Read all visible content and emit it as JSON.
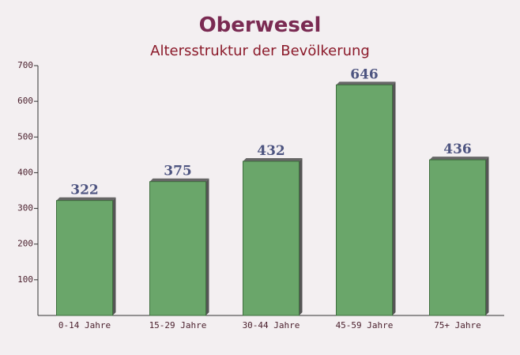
{
  "chart_data": {
    "type": "bar",
    "title": "Oberwesel",
    "subtitle": "Altersstruktur der Bevölkerung",
    "categories": [
      "0-14 Jahre",
      "15-29 Jahre",
      "30-44 Jahre",
      "45-59 Jahre",
      "75+ Jahre"
    ],
    "values": [
      322,
      375,
      432,
      646,
      436
    ],
    "color": "#6aa66a",
    "ylim": [
      0,
      700
    ],
    "yticks": [
      100,
      200,
      300,
      400,
      500,
      600,
      700
    ]
  }
}
